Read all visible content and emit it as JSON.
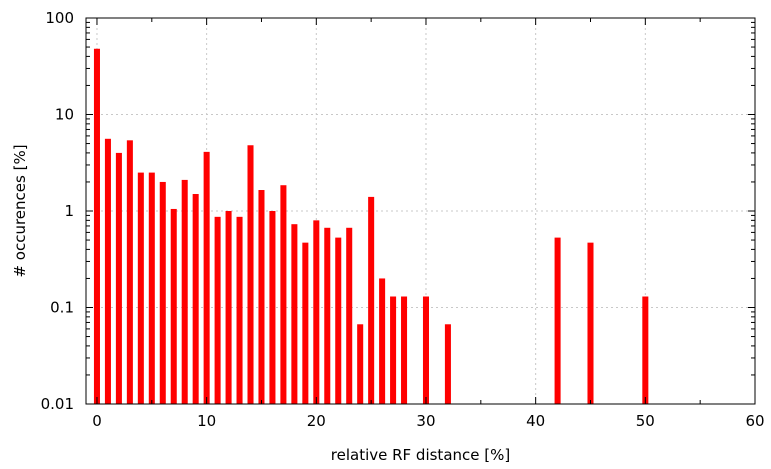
{
  "chart_data": {
    "type": "bar",
    "xlabel": "relative RF distance [%]",
    "ylabel": "# occurences [%]",
    "xlim": [
      -1,
      60
    ],
    "ylim": [
      0.01,
      100
    ],
    "yscale": "log",
    "grid": true,
    "bar_color": "#ff0000",
    "x_ticks": [
      0,
      10,
      20,
      30,
      40,
      50,
      60
    ],
    "x_tick_labels": [
      "0",
      "10",
      "20",
      "30",
      "40",
      "50",
      "60"
    ],
    "y_ticks": [
      0.01,
      0.1,
      1,
      10,
      100
    ],
    "y_tick_labels": [
      "0.01",
      "0.1",
      "1",
      "10",
      "100"
    ],
    "x": [
      0,
      1,
      2,
      3,
      4,
      5,
      6,
      7,
      8,
      9,
      10,
      11,
      12,
      13,
      14,
      15,
      16,
      17,
      18,
      19,
      20,
      21,
      22,
      23,
      24,
      25,
      26,
      27,
      28,
      30,
      32,
      42,
      45,
      50
    ],
    "values": [
      48,
      5.6,
      4.0,
      5.4,
      2.5,
      2.5,
      2.0,
      1.05,
      2.1,
      1.5,
      4.1,
      0.87,
      1.0,
      0.87,
      4.8,
      1.65,
      1.0,
      1.85,
      0.73,
      0.47,
      0.8,
      0.67,
      0.53,
      0.67,
      0.067,
      1.4,
      0.2,
      0.13,
      0.13,
      0.13,
      0.067,
      0.53,
      0.47,
      0.13
    ]
  }
}
